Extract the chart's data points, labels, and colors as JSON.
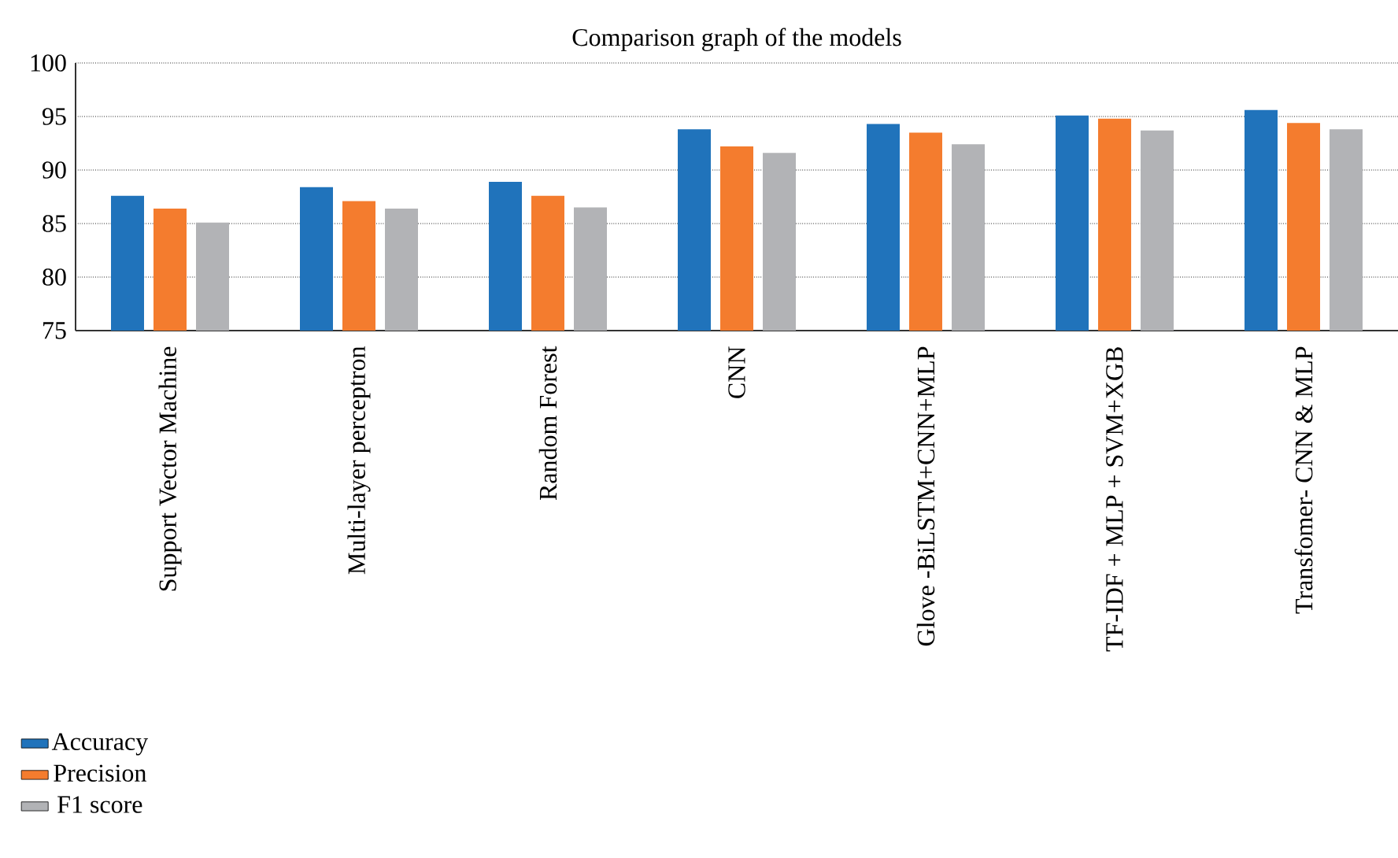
{
  "chart_data": {
    "type": "bar",
    "title": "Comparison graph of the models",
    "categories": [
      "Support Vector Machine",
      "Multi-layer perceptron",
      "Random Forest",
      "CNN",
      "Glove -BiLSTM+CNN+MLP",
      "TF-IDF + MLP + SVM+XGB",
      "Transfomer- CNN & MLP"
    ],
    "series": [
      {
        "name": "Accuracy",
        "color": "#2073bb",
        "values": [
          87.6,
          88.4,
          88.9,
          93.8,
          94.3,
          95.1,
          95.6
        ]
      },
      {
        "name": "Precision",
        "color": "#f47c2e",
        "values": [
          86.4,
          87.1,
          87.6,
          92.2,
          93.5,
          94.8,
          94.4
        ]
      },
      {
        "name": "F1 score",
        "color": "#b2b3b6",
        "values": [
          85.1,
          86.4,
          86.5,
          91.6,
          92.4,
          93.7,
          93.8
        ]
      }
    ],
    "ylim": [
      75,
      100
    ],
    "yticks": [
      75,
      80,
      85,
      90,
      95,
      100
    ],
    "grid": "y",
    "legend": "bottom left"
  }
}
